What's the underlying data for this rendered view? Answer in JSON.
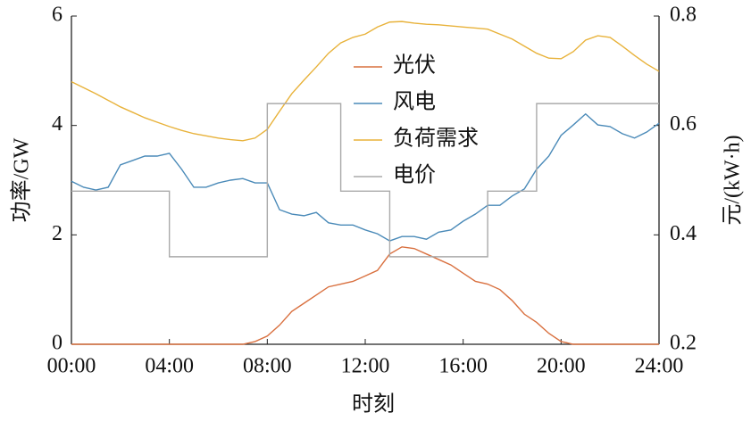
{
  "chart_data": {
    "type": "line",
    "xlabel": "时刻",
    "ylabel": "功率/GW",
    "y2label": "元/(kW·h)",
    "x": [
      0,
      0.5,
      1,
      1.5,
      2,
      2.5,
      3,
      3.5,
      4,
      4.5,
      5,
      5.5,
      6,
      6.5,
      7,
      7.5,
      8,
      8.5,
      9,
      9.5,
      10,
      10.5,
      11,
      11.5,
      12,
      12.5,
      13,
      13.5,
      14,
      14.5,
      15,
      15.5,
      16,
      16.5,
      17,
      17.5,
      18,
      18.5,
      19,
      19.5,
      20,
      20.5,
      21,
      21.5,
      22,
      22.5,
      23,
      23.5,
      24
    ],
    "xlim": [
      0,
      24
    ],
    "xticks": [
      {
        "value": 0,
        "label": "00:00"
      },
      {
        "value": 4,
        "label": "04:00"
      },
      {
        "value": 8,
        "label": "08:00"
      },
      {
        "value": 12,
        "label": "12:00"
      },
      {
        "value": 16,
        "label": "16:00"
      },
      {
        "value": 20,
        "label": "20:00"
      },
      {
        "value": 24,
        "label": "24:00"
      }
    ],
    "ylim": [
      0,
      6
    ],
    "yticks": [
      0,
      2,
      4,
      6
    ],
    "y2lim": [
      0.2,
      0.8
    ],
    "y2ticks": [
      0.2,
      0.4,
      0.6,
      0.8
    ],
    "series": [
      {
        "name": "光伏",
        "color": "#d9703f",
        "values": [
          0,
          0,
          0,
          0,
          0,
          0,
          0,
          0,
          0,
          0,
          0,
          0,
          0,
          0,
          0,
          0.05,
          0.15,
          0.35,
          0.6,
          0.75,
          0.9,
          1.05,
          1.1,
          1.15,
          1.25,
          1.35,
          1.65,
          1.78,
          1.75,
          1.65,
          1.55,
          1.45,
          1.3,
          1.15,
          1.1,
          1.0,
          0.8,
          0.55,
          0.4,
          0.2,
          0.05,
          0,
          0,
          0,
          0,
          0,
          0,
          0,
          0
        ]
      },
      {
        "name": "风电",
        "color": "#4a8ab8",
        "values": [
          2.98,
          2.87,
          2.82,
          2.87,
          3.28,
          3.36,
          3.44,
          3.44,
          3.49,
          3.2,
          2.87,
          2.87,
          2.95,
          3.0,
          3.03,
          2.95,
          2.95,
          2.46,
          2.38,
          2.35,
          2.41,
          2.22,
          2.18,
          2.18,
          2.09,
          2.02,
          1.89,
          1.97,
          1.97,
          1.92,
          2.05,
          2.09,
          2.25,
          2.38,
          2.54,
          2.54,
          2.71,
          2.84,
          3.2,
          3.44,
          3.82,
          4.01,
          4.21,
          4.01,
          3.98,
          3.85,
          3.77,
          3.88,
          4.04
        ]
      },
      {
        "name": "负荷需求",
        "color": "#e8b23a",
        "values": [
          4.8,
          4.69,
          4.58,
          4.46,
          4.34,
          4.24,
          4.14,
          4.06,
          3.98,
          3.91,
          3.85,
          3.81,
          3.77,
          3.74,
          3.72,
          3.77,
          3.93,
          4.26,
          4.58,
          4.83,
          5.07,
          5.32,
          5.51,
          5.61,
          5.67,
          5.8,
          5.89,
          5.9,
          5.87,
          5.85,
          5.84,
          5.82,
          5.8,
          5.78,
          5.76,
          5.67,
          5.58,
          5.45,
          5.32,
          5.23,
          5.22,
          5.35,
          5.56,
          5.64,
          5.61,
          5.45,
          5.28,
          5.12,
          4.99
        ]
      },
      {
        "name": "电价",
        "color": "#aaaaaa",
        "axis": "y2",
        "step": true,
        "x": [
          0,
          4,
          4,
          8,
          8,
          11,
          11,
          13,
          13,
          17,
          17,
          19,
          19,
          24
        ],
        "values": [
          0.48,
          0.48,
          0.36,
          0.36,
          0.64,
          0.64,
          0.48,
          0.48,
          0.36,
          0.36,
          0.48,
          0.48,
          0.64,
          0.64
        ]
      }
    ]
  }
}
